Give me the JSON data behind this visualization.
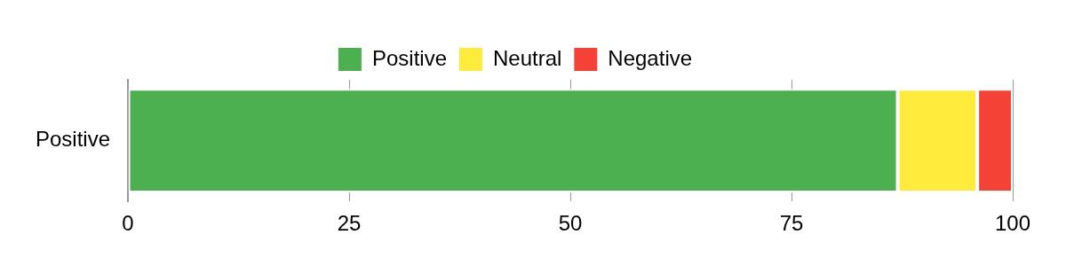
{
  "chart_data": {
    "type": "bar",
    "orientation": "horizontal",
    "stacked": true,
    "categories": [
      "Positive"
    ],
    "series": [
      {
        "name": "Positive",
        "color": "#4caf50",
        "values": [
          87
        ]
      },
      {
        "name": "Neutral",
        "color": "#ffeb3b",
        "values": [
          9
        ]
      },
      {
        "name": "Negative",
        "color": "#f44336",
        "values": [
          4
        ]
      }
    ],
    "xlim": [
      0,
      100
    ],
    "xticks": [
      0,
      25,
      50,
      75,
      100
    ],
    "grid": "x",
    "legend": "top"
  }
}
